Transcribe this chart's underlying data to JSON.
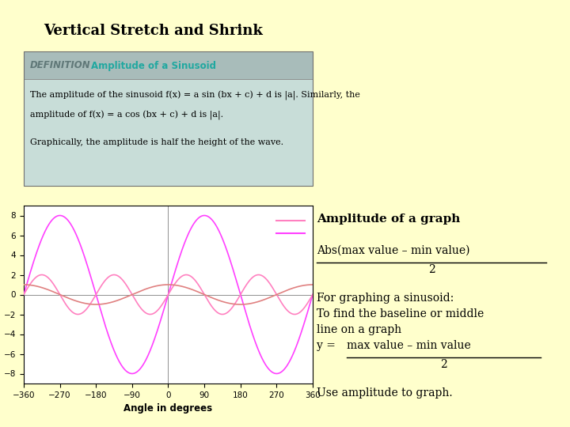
{
  "title": "Vertical Stretch and Shrink",
  "bg_color": "#FFFFCC",
  "def_box_bg": "#C8DDD8",
  "def_header_bg": "#A8BCBA",
  "def_header_text": "DEFINITION",
  "def_header_color": "#607878",
  "def_title": "Amplitude of a Sinusoid",
  "def_title_color": "#20A8A0",
  "def_line1": "The amplitude of the sinusoid f(x) = a sin (bx + c) + d is |a|. Similarly, the",
  "def_line2": "amplitude of f(x) = a cos (bx + c) + d is |a|.",
  "def_line3": "Graphically, the amplitude is half the height of the wave.",
  "plot_xlim": [
    -360,
    360
  ],
  "plot_ylim": [
    -9,
    9
  ],
  "plot_xticks": [
    -360,
    -270,
    -180,
    -90,
    0,
    90,
    180,
    270,
    360
  ],
  "plot_yticks": [
    -8,
    -6,
    -4,
    -2,
    0,
    2,
    4,
    6,
    8
  ],
  "xlabel": "Angle in degrees",
  "sin1_amplitude": 1,
  "sin1_freq": 1,
  "sin1_color": "#E08080",
  "sin2_amplitude": 8,
  "sin2_freq": 1,
  "sin2_color": "#FF40FF",
  "sin3_amplitude": 2,
  "sin3_freq": 2,
  "sin3_color": "#FF80C0",
  "baseline_color": "#909090",
  "vline_color": "#909090",
  "right_title": "Amplitude of a graph",
  "formula1_num": "Abs(max value – min value)",
  "formula1_den": "2",
  "text1": "For graphing a sinusoid:",
  "text2": "To find the baseline or middle",
  "text3": "line on a graph",
  "formula2_pre": "y = ",
  "formula2_num": "max value – min value",
  "formula2_den": "2",
  "text5": "Use amplitude to graph."
}
